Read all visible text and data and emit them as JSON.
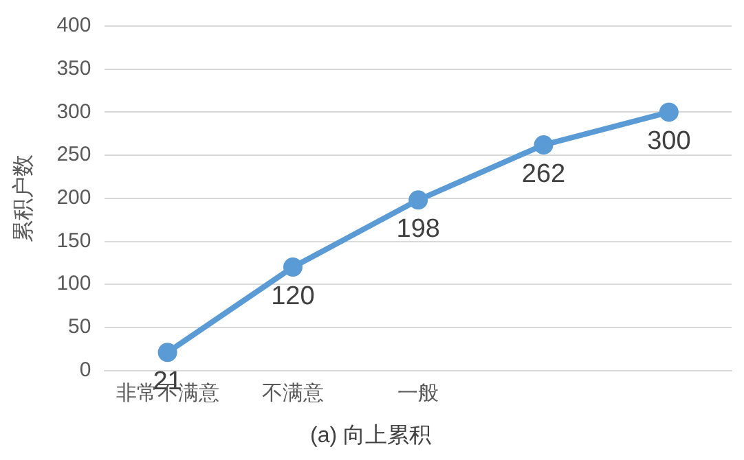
{
  "chart_data": {
    "type": "line",
    "title": "(a) 向上累积",
    "ylabel": "累积户数",
    "categories": [
      "非常不满意",
      "不满意",
      "一般",
      null,
      null
    ],
    "series": [
      {
        "color": "#5b9bd5",
        "values": [
          21,
          120,
          198,
          262,
          300
        ]
      }
    ],
    "ylim": [
      0,
      400
    ],
    "yticks": [
      0,
      50,
      100,
      150,
      200,
      250,
      300,
      350,
      400
    ],
    "grid": "y",
    "legend": false,
    "marker": "circle",
    "data_labels": true
  }
}
